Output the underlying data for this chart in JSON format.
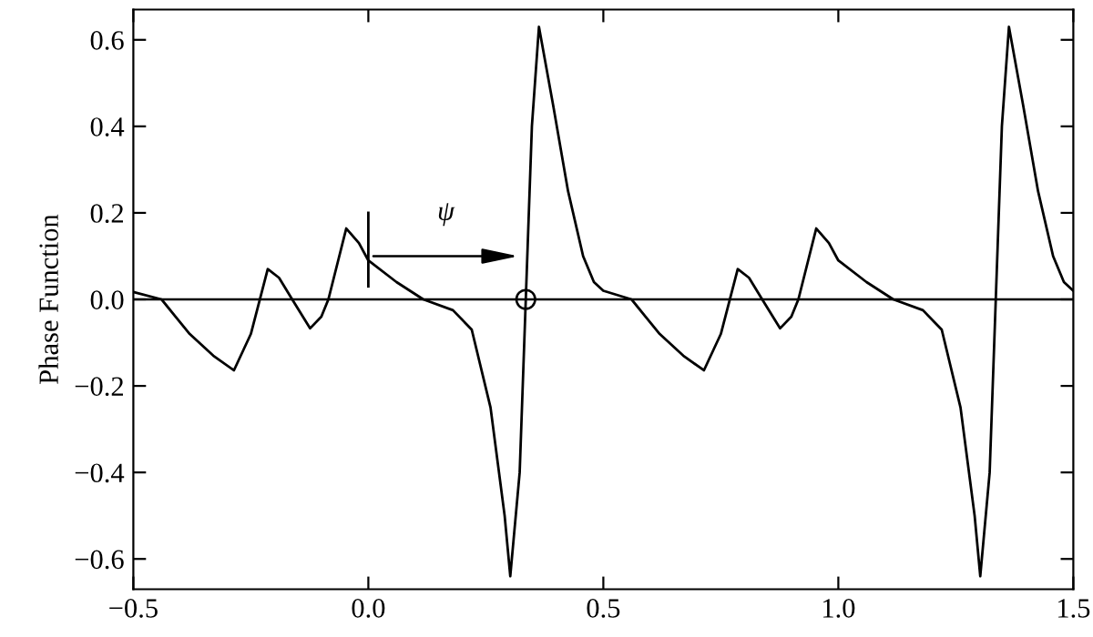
{
  "chart_data": {
    "type": "line",
    "ylabel": "Phase Function",
    "xlim": [
      -0.5,
      1.5
    ],
    "xticks": [
      {
        "value": -0.5,
        "label": "−0.5"
      },
      {
        "value": 0,
        "label": "0.0"
      },
      0.5,
      {
        "value": 1,
        "label": "1.0"
      },
      1.5
    ],
    "ylim": [
      -0.67,
      0.67
    ],
    "yticks": [
      {
        "value": -0.6,
        "label": "−0.6"
      },
      {
        "value": -0.4,
        "label": "−0.4"
      },
      {
        "value": -0.2,
        "label": "−0.2"
      },
      {
        "value": 0,
        "label": "0.0"
      },
      0.2,
      0.4,
      0.6
    ],
    "grid": false,
    "legend": false,
    "ref_lines": [
      {
        "axis": "y",
        "value": 0,
        "color": "#000000",
        "line_style": "solid"
      }
    ],
    "annotations": [
      "ψ"
    ],
    "series": [
      {
        "color": "#000000",
        "marker": "none",
        "line_style": "solid",
        "x": [
          -0.5,
          -0.44,
          -0.41,
          -0.38,
          -0.33,
          -0.286,
          -0.25,
          -0.214,
          -0.19,
          -0.162,
          -0.124,
          -0.1,
          -0.085,
          -0.047,
          -0.02,
          0.0,
          0.06,
          0.117,
          0.18,
          0.22,
          0.26,
          0.29,
          0.302,
          0.322,
          0.335,
          0.348,
          0.363,
          0.393,
          0.425,
          0.457,
          0.48,
          0.5,
          0.56,
          0.59,
          0.62,
          0.67,
          0.714,
          0.75,
          0.786,
          0.81,
          0.838,
          0.876,
          0.9,
          0.915,
          0.953,
          0.98,
          1.0,
          1.06,
          1.117,
          1.18,
          1.22,
          1.26,
          1.29,
          1.302,
          1.322,
          1.335,
          1.348,
          1.363,
          1.393,
          1.425,
          1.457,
          1.48,
          1.5
        ],
        "values": [
          0.017,
          0.0,
          -0.04,
          -0.08,
          -0.13,
          -0.164,
          -0.08,
          0.07,
          0.05,
          0.0,
          -0.067,
          -0.04,
          0.0,
          0.164,
          0.13,
          0.09,
          0.04,
          0.0,
          -0.025,
          -0.07,
          -0.25,
          -0.5,
          -0.64,
          -0.4,
          0.0,
          0.4,
          0.63,
          0.45,
          0.25,
          0.1,
          0.04,
          0.02,
          0.0,
          -0.04,
          -0.08,
          -0.13,
          -0.164,
          -0.08,
          0.07,
          0.05,
          0.0,
          -0.067,
          -0.04,
          0.0,
          0.164,
          0.13,
          0.09,
          0.04,
          0.0,
          -0.025,
          -0.07,
          -0.25,
          -0.5,
          -0.64,
          -0.4,
          0.0,
          0.4,
          0.63,
          0.45,
          0.25,
          0.1,
          0.04,
          0.02
        ]
      },
      {
        "color": "#000000",
        "type": "scatter",
        "marker": "circle",
        "x": [
          0.335
        ],
        "values": [
          0.0
        ]
      }
    ]
  }
}
